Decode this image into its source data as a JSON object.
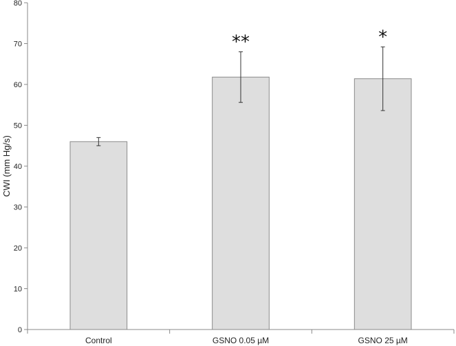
{
  "chart_data": {
    "type": "bar",
    "title": "",
    "xlabel": "",
    "ylabel": "CWI (mm Hg/s)",
    "ylim": [
      0,
      80
    ],
    "yticks": [
      0,
      10,
      20,
      30,
      40,
      50,
      60,
      70,
      80
    ],
    "grid": false,
    "categories": [
      "Control",
      "GSNO 0.05 µM",
      "GSNO 25 µM"
    ],
    "values": [
      46.0,
      61.8,
      61.4
    ],
    "error": [
      1.0,
      6.2,
      7.8
    ],
    "annotations": [
      "",
      "**",
      "*"
    ],
    "bar_color": "#dedede",
    "bar_edge_color": "#8a8a8a"
  }
}
